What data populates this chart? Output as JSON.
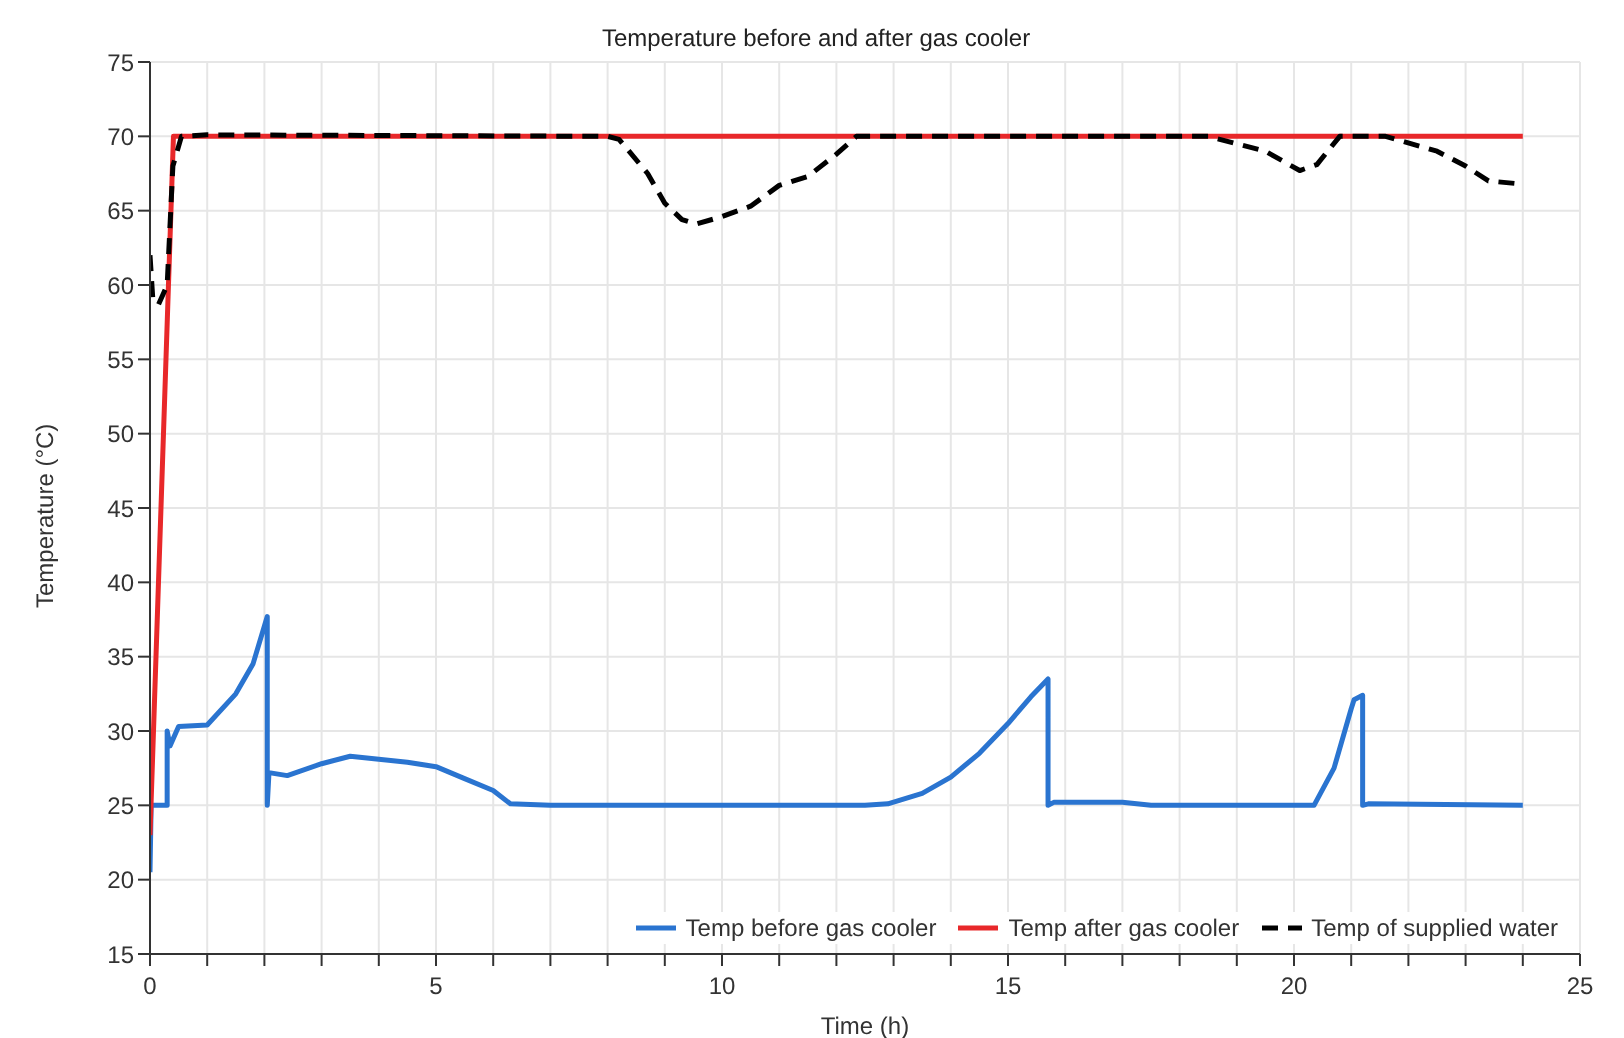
{
  "chart_data": {
    "type": "line",
    "title": "Temperature before and after gas cooler",
    "xlabel": "Time (h)",
    "ylabel": "Temperature (°C)",
    "xlim": [
      0,
      25
    ],
    "ylim": [
      15,
      75
    ],
    "xticks": [
      0,
      {
        "value": 1,
        "label": null
      },
      {
        "value": 2,
        "label": null
      },
      {
        "value": 3,
        "label": null
      },
      {
        "value": 4,
        "label": null
      },
      5,
      {
        "value": 6,
        "label": null
      },
      {
        "value": 7,
        "label": null
      },
      {
        "value": 8,
        "label": null
      },
      {
        "value": 9,
        "label": null
      },
      10,
      {
        "value": 11,
        "label": null
      },
      {
        "value": 12,
        "label": null
      },
      {
        "value": 13,
        "label": null
      },
      {
        "value": 14,
        "label": null
      },
      15,
      {
        "value": 16,
        "label": null
      },
      {
        "value": 17,
        "label": null
      },
      {
        "value": 18,
        "label": null
      },
      {
        "value": 19,
        "label": null
      },
      20,
      {
        "value": 21,
        "label": null
      },
      {
        "value": 22,
        "label": null
      },
      {
        "value": 23,
        "label": null
      },
      {
        "value": 24,
        "label": null
      },
      25
    ],
    "yticks": [
      15,
      20,
      25,
      30,
      35,
      40,
      45,
      50,
      55,
      60,
      65,
      70,
      75
    ],
    "grid": true,
    "legend": "bottom right",
    "marker": "none",
    "series": [
      {
        "name": "Temp before gas cooler",
        "color": "#2a74d0",
        "line_style": "solid",
        "x": [
          0,
          0.02,
          0.3,
          0.3,
          0.35,
          0.5,
          1.0,
          1.5,
          1.8,
          2.05,
          2.05,
          2.08,
          2.4,
          3,
          3.5,
          4,
          4.5,
          5,
          5.5,
          6,
          6.3,
          7,
          12,
          12.5,
          12.9,
          13.5,
          14,
          14.5,
          15,
          15.4,
          15.7,
          15.7,
          15.8,
          17,
          17.5,
          20.35,
          20.7,
          21,
          21.05,
          21.2,
          21.2,
          21.3,
          24
        ],
        "values": [
          20.5,
          25,
          25,
          30,
          29,
          30.3,
          30.4,
          32.5,
          34.5,
          37.7,
          25,
          27.2,
          27,
          27.8,
          28.3,
          28.1,
          27.9,
          27.6,
          26.8,
          26,
          25.1,
          25,
          25,
          25,
          25.1,
          25.8,
          26.9,
          28.5,
          30.5,
          32.3,
          33.5,
          25,
          25.2,
          25.2,
          25,
          25,
          27.5,
          31.5,
          32.1,
          32.4,
          25,
          25.1,
          25
        ]
      },
      {
        "name": "Temp after gas cooler",
        "color": "#e8282a",
        "line_style": "solid",
        "x": [
          0,
          0.41,
          24
        ],
        "values": [
          23,
          70,
          70
        ]
      },
      {
        "name": "Temp of supplied water",
        "color": "#000000",
        "line_style": "dashed",
        "x": [
          0,
          0.05,
          0.15,
          0.3,
          0.4,
          0.55,
          1,
          8,
          8.2,
          8.7,
          9,
          9.3,
          9.55,
          10,
          10.5,
          11,
          11.5,
          12,
          12.35,
          18.5,
          19.5,
          20.1,
          20.4,
          20.8,
          21.6,
          22.5,
          23,
          23.4,
          23.95
        ],
        "values": [
          62,
          59,
          58.7,
          60,
          68,
          70,
          70.1,
          70,
          69.8,
          67.5,
          65.5,
          64.4,
          64.1,
          64.6,
          65.3,
          66.7,
          67.3,
          68.8,
          70,
          70,
          69,
          67.7,
          68.1,
          70,
          70,
          69,
          68,
          67,
          66.8
        ]
      }
    ]
  }
}
